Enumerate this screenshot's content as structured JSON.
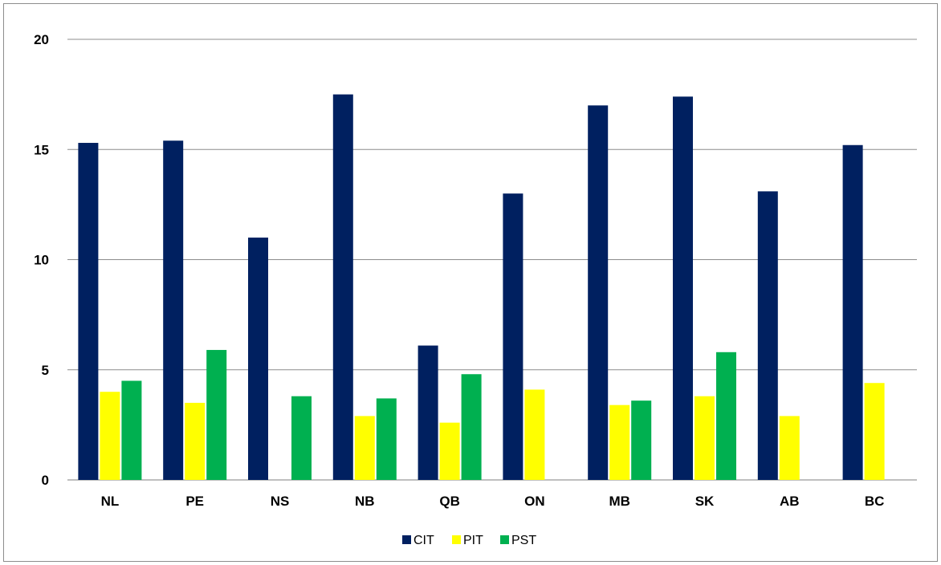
{
  "chart_data": {
    "type": "bar",
    "title": "",
    "xlabel": "",
    "ylabel": "",
    "categories": [
      "NL",
      "PE",
      "NS",
      "NB",
      "QB",
      "ON",
      "MB",
      "SK",
      "AB",
      "BC"
    ],
    "series": [
      {
        "name": "CIT",
        "color": "#002060",
        "values": [
          15.3,
          15.4,
          11.0,
          17.5,
          6.1,
          13.0,
          17.0,
          17.4,
          13.1,
          15.2
        ]
      },
      {
        "name": "PIT",
        "color": "#FFFF00",
        "values": [
          4.0,
          3.5,
          null,
          2.9,
          2.6,
          4.1,
          3.4,
          3.8,
          2.9,
          4.4
        ]
      },
      {
        "name": "PST",
        "color": "#00B050",
        "values": [
          4.5,
          5.9,
          3.8,
          3.7,
          4.8,
          null,
          3.6,
          5.8,
          null,
          null
        ]
      }
    ],
    "ylim": [
      0,
      20
    ],
    "yticks": [
      "0",
      "5",
      "10",
      "15",
      "20"
    ],
    "grid": true,
    "legend": "bottom"
  }
}
